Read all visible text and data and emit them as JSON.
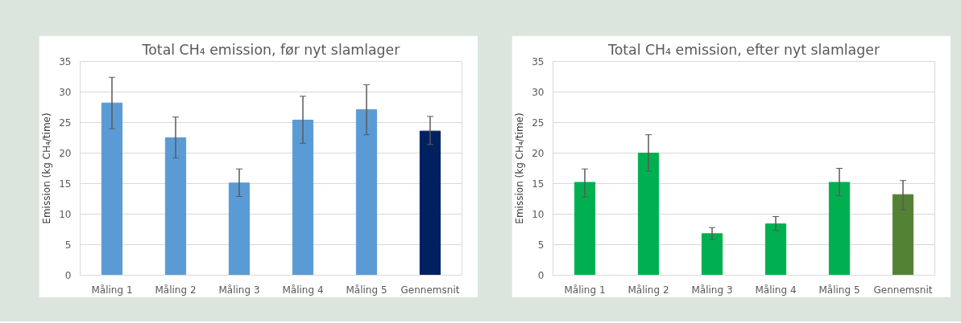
{
  "chart_data": [
    {
      "type": "bar",
      "title": "Total CH₄ emission, før nyt slamlager",
      "ylabel": "Emission (kg CH₄/time)",
      "categories": [
        "Måling 1",
        "Måling 2",
        "Måling 3",
        "Måling 4",
        "Måling 5",
        "Gennemsnit"
      ],
      "values": [
        28.2,
        22.5,
        15.1,
        25.4,
        27.1,
        23.6
      ],
      "colors": [
        "#5b9bd5",
        "#5b9bd5",
        "#5b9bd5",
        "#5b9bd5",
        "#5b9bd5",
        "#002060"
      ],
      "errors": [
        [
          24.0,
          32.4
        ],
        [
          19.2,
          25.9
        ],
        [
          12.9,
          17.4
        ],
        [
          21.6,
          29.3
        ],
        [
          23.0,
          31.2
        ],
        [
          21.4,
          26.0
        ]
      ],
      "ylim": [
        0,
        35
      ],
      "yticks": [
        0,
        5,
        10,
        15,
        20,
        25,
        30,
        35
      ],
      "grid": "y"
    },
    {
      "type": "bar",
      "title": "Total CH₄ emission, efter nyt slamlager",
      "ylabel": "Emission (kg CH₄/time)",
      "categories": [
        "Måling 1",
        "Måling 2",
        "Måling 3",
        "Måling 4",
        "Måling 5",
        "Gennemsnit"
      ],
      "values": [
        15.2,
        20.0,
        6.8,
        8.4,
        15.2,
        13.2
      ],
      "colors": [
        "#00b050",
        "#00b050",
        "#00b050",
        "#00b050",
        "#00b050",
        "#548235"
      ],
      "errors": [
        [
          12.8,
          17.4
        ],
        [
          17.0,
          23.0
        ],
        [
          5.8,
          7.8
        ],
        [
          7.3,
          9.6
        ],
        [
          13.0,
          17.5
        ],
        [
          10.7,
          15.5
        ]
      ],
      "ylim": [
        0,
        35
      ],
      "yticks": [
        0,
        5,
        10,
        15,
        20,
        25,
        30,
        35
      ],
      "grid": "y"
    }
  ]
}
